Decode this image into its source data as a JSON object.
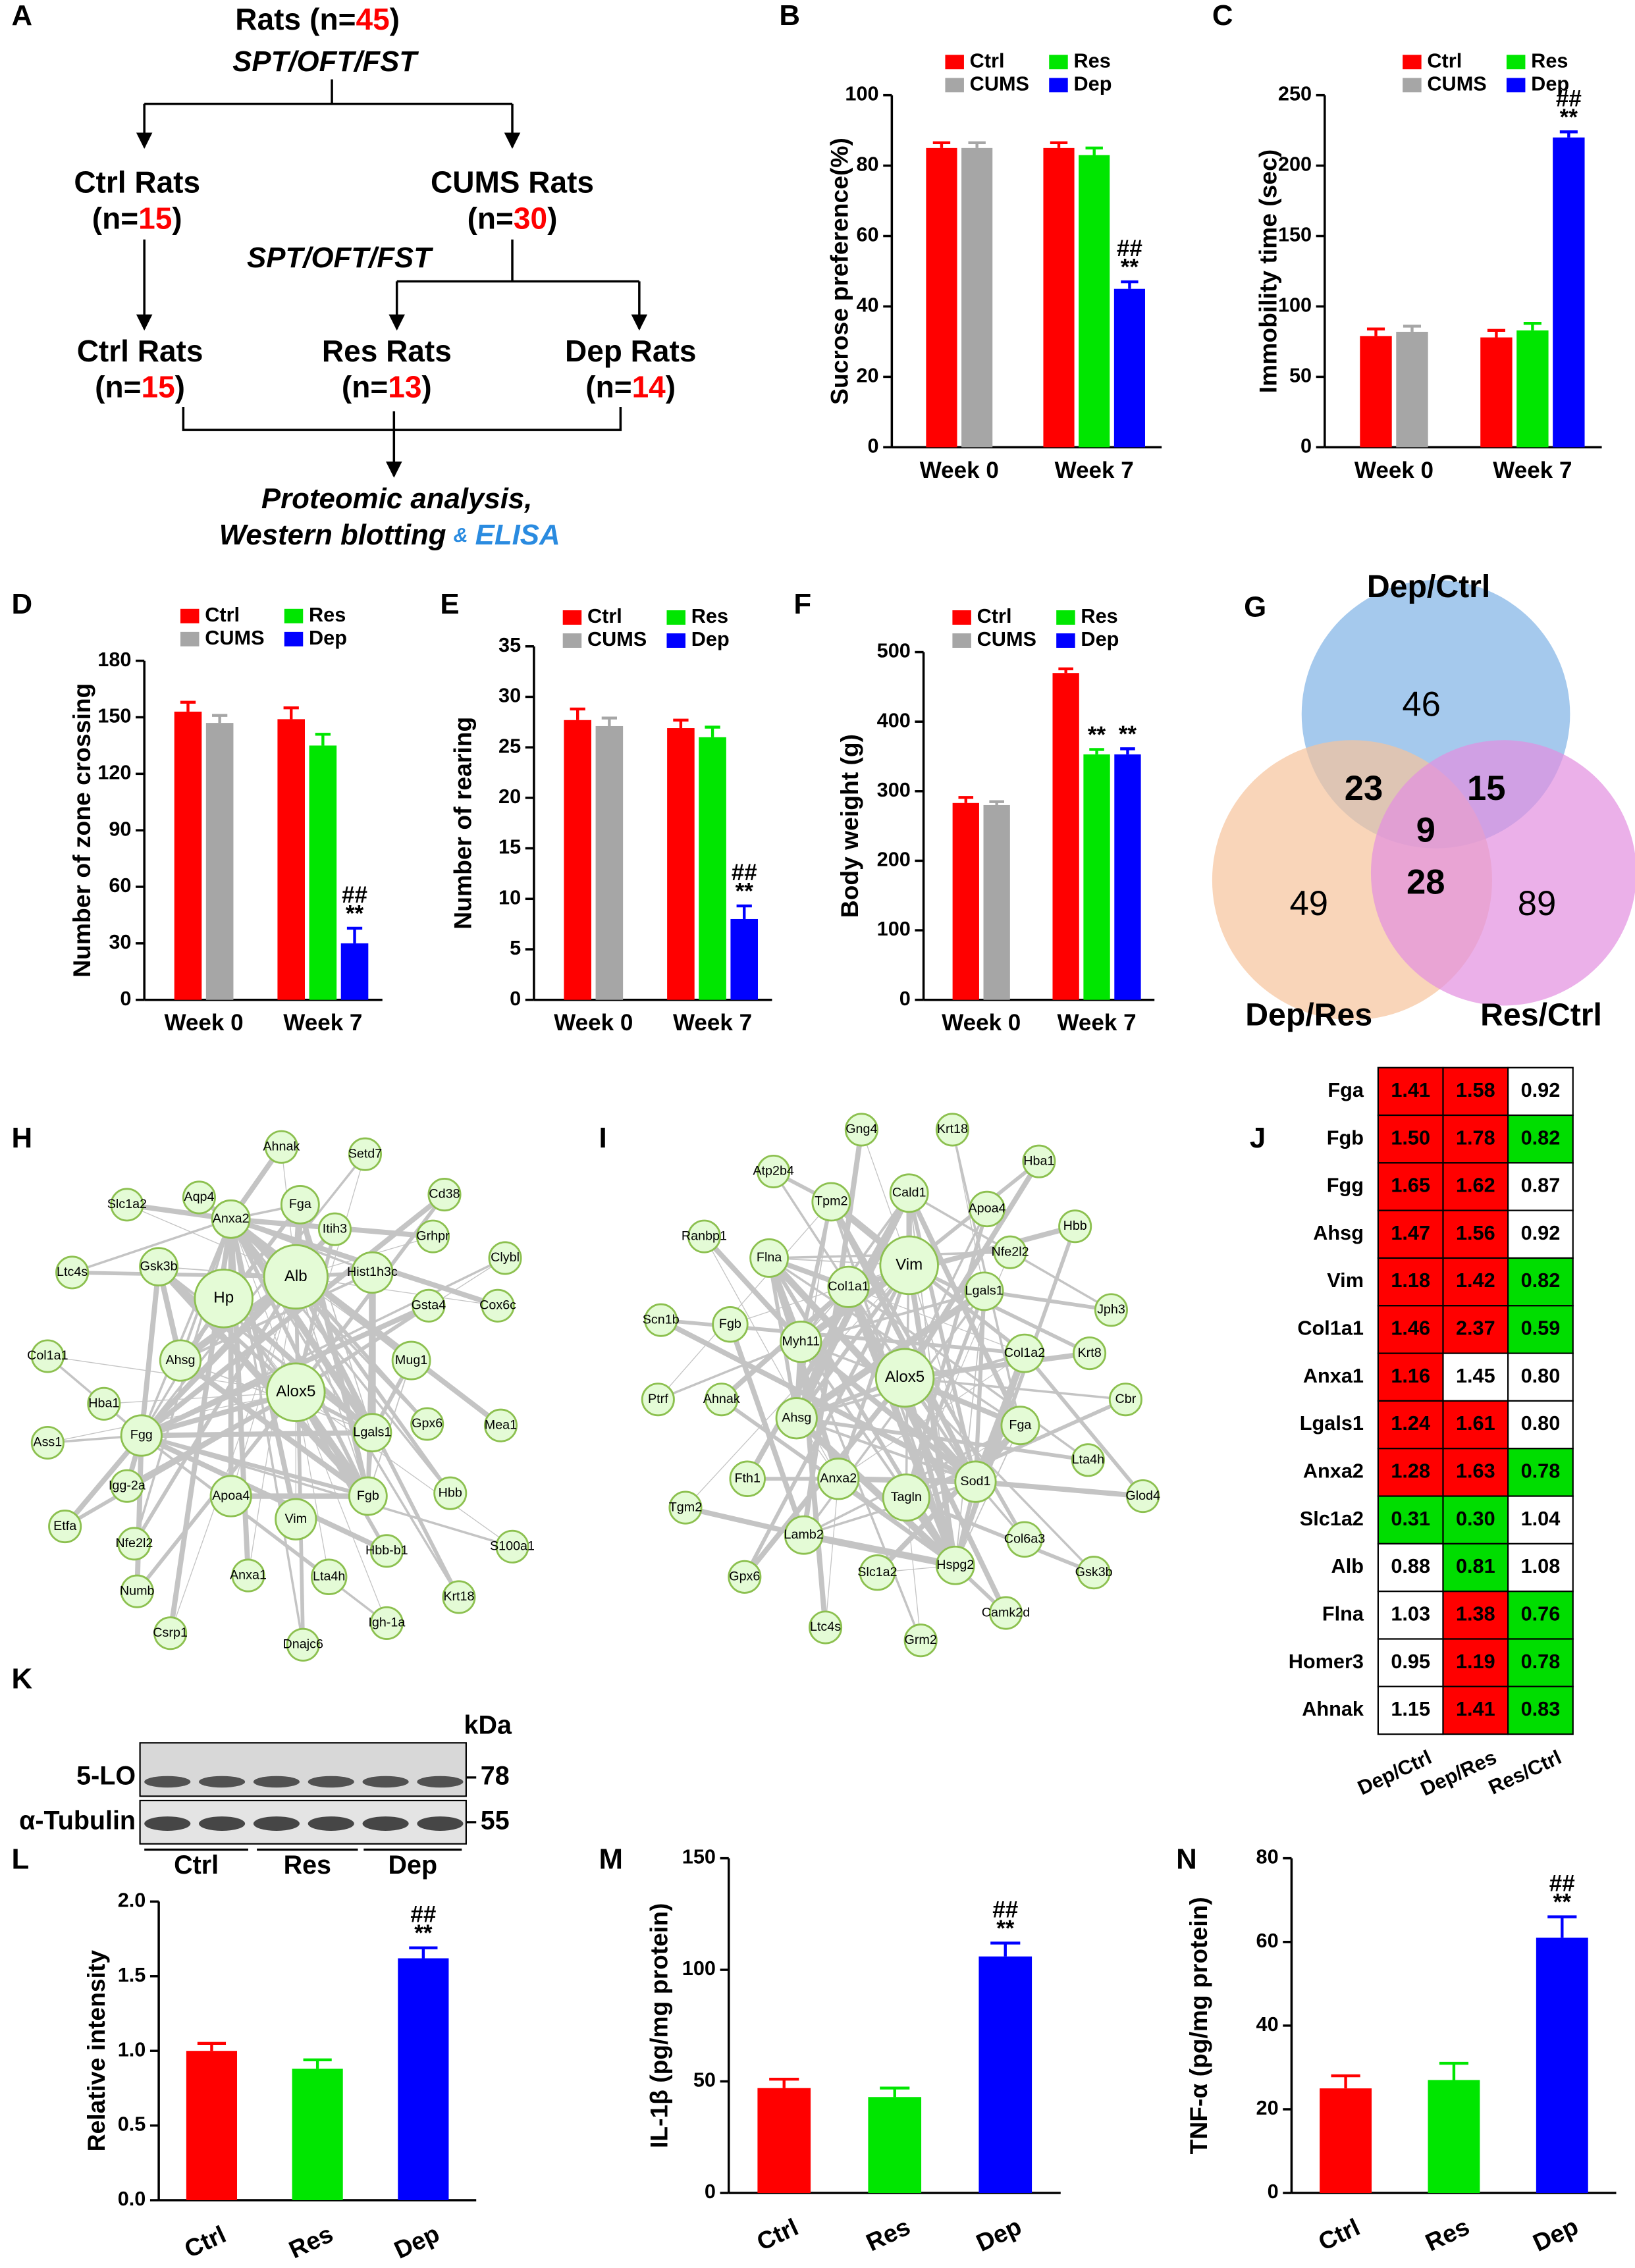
{
  "flowchart": {
    "panel": "A",
    "nodes": [
      {
        "name": "Rats",
        "n": [
          "(n=",
          45,
          ")"
        ]
      },
      {
        "name": "Ctrl Rats",
        "n": [
          "(n=",
          15,
          ")"
        ]
      },
      {
        "name": "CUMS Rats",
        "n": [
          "(n=",
          30,
          ")"
        ]
      },
      {
        "name": "Ctrl Rats",
        "n": [
          "(n=",
          15,
          ")"
        ]
      },
      {
        "name": "Res Rats",
        "n": [
          "(n=",
          13,
          ")"
        ]
      },
      {
        "name": "Dep Rats",
        "n": [
          "(n=",
          14,
          ")"
        ]
      }
    ],
    "tests": [
      "SPT/OFT/FST",
      "SPT/OFT/FST"
    ],
    "outcome": [
      "Proteomic analysis,",
      "Western blotting",
      "&",
      "ELISA"
    ]
  },
  "chart_data": [
    {
      "panel": "B",
      "type": "bar",
      "ylabel": "Sucrose preference(%)",
      "categories": [
        "Week 0",
        "Week 7"
      ],
      "ylim": [
        0,
        100
      ],
      "yticks": [
        0,
        20,
        40,
        60,
        80,
        100
      ],
      "series": [
        {
          "name": "Ctrl",
          "color": "#ff0000",
          "values": [
            85,
            85
          ],
          "errors": [
            1.5,
            1.5
          ]
        },
        {
          "name": "CUMS",
          "color": "#a6a6a6",
          "values": [
            85,
            null
          ],
          "errors": [
            1.5,
            null
          ]
        },
        {
          "name": "Res",
          "color": "#00e600",
          "values": [
            null,
            83
          ],
          "errors": [
            null,
            2
          ]
        },
        {
          "name": "Dep",
          "color": "#0000ff",
          "values": [
            null,
            45
          ],
          "errors": [
            null,
            2
          ],
          "annotations": [
            null,
            [
              "##",
              "**"
            ]
          ]
        }
      ]
    },
    {
      "panel": "C",
      "type": "bar",
      "ylabel": "Immobility time (sec)",
      "categories": [
        "Week 0",
        "Week 7"
      ],
      "ylim": [
        0,
        250
      ],
      "yticks": [
        0,
        50,
        100,
        150,
        200,
        250
      ],
      "series": [
        {
          "name": "Ctrl",
          "color": "#ff0000",
          "values": [
            79,
            78
          ],
          "errors": [
            5,
            5
          ]
        },
        {
          "name": "CUMS",
          "color": "#a6a6a6",
          "values": [
            82,
            null
          ],
          "errors": [
            4,
            null
          ]
        },
        {
          "name": "Res",
          "color": "#00e600",
          "values": [
            null,
            83
          ],
          "errors": [
            null,
            5
          ]
        },
        {
          "name": "Dep",
          "color": "#0000ff",
          "values": [
            null,
            220
          ],
          "errors": [
            null,
            4
          ],
          "annotations": [
            null,
            [
              "##",
              "**"
            ]
          ]
        }
      ]
    },
    {
      "panel": "D",
      "type": "bar",
      "ylabel": "Number of zone crossing",
      "categories": [
        "Week 0",
        "Week 7"
      ],
      "ylim": [
        0,
        180
      ],
      "yticks": [
        0,
        30,
        60,
        90,
        120,
        150,
        180
      ],
      "series": [
        {
          "name": "Ctrl",
          "color": "#ff0000",
          "values": [
            153,
            149
          ],
          "errors": [
            5,
            6
          ]
        },
        {
          "name": "CUMS",
          "color": "#a6a6a6",
          "values": [
            147,
            null
          ],
          "errors": [
            4,
            null
          ]
        },
        {
          "name": "Res",
          "color": "#00e600",
          "values": [
            null,
            135
          ],
          "errors": [
            null,
            6
          ]
        },
        {
          "name": "Dep",
          "color": "#0000ff",
          "values": [
            null,
            30
          ],
          "errors": [
            null,
            8
          ],
          "annotations": [
            null,
            [
              "##",
              "**"
            ]
          ]
        }
      ]
    },
    {
      "panel": "E",
      "type": "bar",
      "ylabel": "Number of rearing",
      "categories": [
        "Week 0",
        "Week 7"
      ],
      "ylim": [
        0,
        35
      ],
      "yticks": [
        0,
        5,
        10,
        15,
        20,
        25,
        30,
        35
      ],
      "series": [
        {
          "name": "Ctrl",
          "color": "#ff0000",
          "values": [
            27.7,
            26.9
          ],
          "errors": [
            1.1,
            0.8
          ]
        },
        {
          "name": "CUMS",
          "color": "#a6a6a6",
          "values": [
            27.1,
            null
          ],
          "errors": [
            0.8,
            null
          ]
        },
        {
          "name": "Res",
          "color": "#00e600",
          "values": [
            null,
            26
          ],
          "errors": [
            null,
            1
          ]
        },
        {
          "name": "Dep",
          "color": "#0000ff",
          "values": [
            null,
            8
          ],
          "errors": [
            null,
            1.3
          ],
          "annotations": [
            null,
            [
              "##",
              "**"
            ]
          ]
        }
      ]
    },
    {
      "panel": "F",
      "type": "bar",
      "ylabel": "Body weight (g)",
      "categories": [
        "Week 0",
        "Week 7"
      ],
      "ylim": [
        0,
        500
      ],
      "yticks": [
        0,
        100,
        200,
        300,
        400,
        500
      ],
      "series": [
        {
          "name": "Ctrl",
          "color": "#ff0000",
          "values": [
            283,
            470
          ],
          "errors": [
            8,
            6
          ]
        },
        {
          "name": "CUMS",
          "color": "#a6a6a6",
          "values": [
            280,
            null
          ],
          "errors": [
            5,
            null
          ]
        },
        {
          "name": "Res",
          "color": "#00e600",
          "values": [
            null,
            353
          ],
          "errors": [
            null,
            7
          ],
          "annotations": [
            null,
            [
              "**"
            ]
          ]
        },
        {
          "name": "Dep",
          "color": "#0000ff",
          "values": [
            null,
            353
          ],
          "errors": [
            null,
            8
          ],
          "annotations": [
            null,
            [
              "**"
            ]
          ]
        }
      ]
    },
    {
      "panel": "L",
      "type": "bar",
      "ylabel": "Relative intensity",
      "categories": [
        "Ctrl",
        "Res",
        "Dep"
      ],
      "colors": [
        "#ff0000",
        "#00e600",
        "#0000ff"
      ],
      "values": [
        1.0,
        0.88,
        1.62
      ],
      "errors": [
        0.05,
        0.06,
        0.07
      ],
      "annotations": [
        null,
        null,
        [
          "##",
          "**"
        ]
      ],
      "ylim": [
        0,
        2
      ],
      "yticks": [
        {
          "value": 0,
          "label": "0.0"
        },
        0.5,
        {
          "value": 1,
          "label": "1.0"
        },
        1.5,
        {
          "value": 2,
          "label": "2.0"
        }
      ]
    },
    {
      "panel": "M",
      "type": "bar",
      "ylabel": "IL-1β (pg/mg protein)",
      "categories": [
        "Ctrl",
        "Res",
        "Dep"
      ],
      "colors": [
        "#ff0000",
        "#00e600",
        "#0000ff"
      ],
      "values": [
        47,
        43,
        106
      ],
      "errors": [
        4,
        4,
        6
      ],
      "annotations": [
        null,
        null,
        [
          "##",
          "**"
        ]
      ],
      "ylim": [
        0,
        150
      ],
      "yticks": [
        0,
        50,
        100,
        150
      ]
    },
    {
      "panel": "N",
      "type": "bar",
      "ylabel": "TNF-α (pg/mg protein)",
      "categories": [
        "Ctrl",
        "Res",
        "Dep"
      ],
      "colors": [
        "#ff0000",
        "#00e600",
        "#0000ff"
      ],
      "values": [
        25,
        27,
        61
      ],
      "errors": [
        3,
        4,
        5
      ],
      "annotations": [
        null,
        null,
        [
          "##",
          "**"
        ]
      ],
      "ylim": [
        0,
        80
      ],
      "yticks": [
        0,
        20,
        40,
        60,
        80
      ]
    }
  ],
  "venn": {
    "panel": "G",
    "sets": [
      {
        "name": "Dep/Ctrl",
        "color": "#7fb2e5"
      },
      {
        "name": "Dep/Res",
        "color": "#f7c39b"
      },
      {
        "name": "Res/Ctrl",
        "color": "#e28fe0"
      }
    ],
    "regions": [
      {
        "sets": [
          "Dep/Ctrl"
        ],
        "value": 46
      },
      {
        "sets": [
          "Dep/Ctrl",
          "Dep/Res"
        ],
        "value": 23
      },
      {
        "sets": [
          "Dep/Ctrl",
          "Res/Ctrl"
        ],
        "value": 15
      },
      {
        "sets": [
          "Dep/Ctrl",
          "Dep/Res",
          "Res/Ctrl"
        ],
        "value": 9
      },
      {
        "sets": [
          "Dep/Res"
        ],
        "value": 49
      },
      {
        "sets": [
          "Dep/Res",
          "Res/Ctrl"
        ],
        "value": 28
      },
      {
        "sets": [
          "Res/Ctrl"
        ],
        "value": 89
      }
    ]
  },
  "networks": [
    {
      "panel": "H",
      "nodes": [
        "Ahnak",
        "Setd7",
        "Aqp4",
        "Cd38",
        "Slc1a2",
        "Anxa2",
        "Fga",
        "Itih3",
        "Grhpr",
        "Clybl",
        "Ltc4s",
        "Gsk3b",
        "Alb",
        "Hp",
        "Hist1h3c",
        "Gsta4",
        "Cox6c",
        "Col1a1",
        "Ahsg",
        "Alox5",
        "Mug1",
        "Hba1",
        "Gpx6",
        "Lgals1",
        "Mea1",
        "Ass1",
        "Fgg",
        "Igg-2a",
        "Apoa4",
        "Fgb",
        "Hbb",
        "Etfa",
        "Vim",
        "S100a1",
        "Nfe2l2",
        "Hbb-b1",
        "Anxa1",
        "Lta4h",
        "Krt18",
        "Numb",
        "Csrp1",
        "Igh-1a",
        "Dnajc6"
      ]
    },
    {
      "panel": "I",
      "nodes": [
        "Gng4",
        "Krt18",
        "Atp2b4",
        "Hba1",
        "Cald1",
        "Tpm2",
        "Apoa4",
        "Hbb",
        "Ranbp1",
        "Nfe2l2",
        "Flna",
        "Vim",
        "Col1a1",
        "Lgals1",
        "Jph3",
        "Scn1b",
        "Fgb",
        "Myh11",
        "Col1a2",
        "Krt8",
        "Alox5",
        "Ptrf",
        "Cbr",
        "Ahnak",
        "Ahsg",
        "Fga",
        "Lta4h",
        "Fth1",
        "Anxa2",
        "Sod1",
        "Tagln",
        "Glod4",
        "Tgm2",
        "Lamb2",
        "Col6a3",
        "Gpx6",
        "Slc1a2",
        "Hspg2",
        "Gsk3b",
        "Camk2d",
        "Ltc4s",
        "Grm2"
      ]
    }
  ],
  "heatmap": {
    "panel": "J",
    "rows": [
      "Fga",
      "Fgb",
      "Fgg",
      "Ahsg",
      "Vim",
      "Col1a1",
      "Anxa1",
      "Lgals1",
      "Anxa2",
      "Slc1a2",
      "Alb",
      "Flna",
      "Homer3",
      "Ahnak"
    ],
    "columns": [
      "Dep/Ctrl",
      "Dep/Res",
      "Res/Ctrl"
    ],
    "values": [
      [
        1.41,
        1.58,
        0.92
      ],
      [
        1.5,
        1.78,
        0.82
      ],
      [
        1.65,
        1.62,
        0.87
      ],
      [
        1.47,
        1.56,
        0.92
      ],
      [
        1.18,
        1.42,
        0.82
      ],
      [
        1.46,
        2.37,
        0.59
      ],
      [
        1.16,
        1.45,
        0.8
      ],
      [
        1.24,
        1.61,
        0.8
      ],
      [
        1.28,
        1.63,
        0.78
      ],
      [
        0.31,
        0.3,
        1.04
      ],
      [
        0.88,
        0.81,
        1.08
      ],
      [
        1.03,
        1.38,
        0.76
      ],
      [
        0.95,
        1.19,
        0.78
      ],
      [
        1.15,
        1.41,
        0.83
      ]
    ],
    "value_labels": [
      [
        "1.41",
        "1.58",
        "0.92"
      ],
      [
        "1.50",
        "1.78",
        "0.82"
      ],
      [
        "1.65",
        "1.62",
        "0.87"
      ],
      [
        "1.47",
        "1.56",
        "0.92"
      ],
      [
        "1.18",
        "1.42",
        "0.82"
      ],
      [
        "1.46",
        "2.37",
        "0.59"
      ],
      [
        "1.16",
        "1.45",
        "0.80"
      ],
      [
        "1.24",
        "1.61",
        "0.80"
      ],
      [
        "1.28",
        "1.63",
        "0.78"
      ],
      [
        "0.31",
        "0.30",
        "1.04"
      ],
      [
        "0.88",
        "0.81",
        "1.08"
      ],
      [
        "1.03",
        "1.38",
        "0.76"
      ],
      [
        "0.95",
        "1.19",
        "0.78"
      ],
      [
        "1.15",
        "1.41",
        "0.83"
      ]
    ],
    "colors": [
      [
        "#ff0000",
        "#ff0000",
        "#ffffff"
      ],
      [
        "#ff0000",
        "#ff0000",
        "#00dd00"
      ],
      [
        "#ff0000",
        "#ff0000",
        "#ffffff"
      ],
      [
        "#ff0000",
        "#ff0000",
        "#ffffff"
      ],
      [
        "#ff0000",
        "#ff0000",
        "#00dd00"
      ],
      [
        "#ff0000",
        "#ff0000",
        "#00dd00"
      ],
      [
        "#ff0000",
        "#ffffff",
        "#ffffff"
      ],
      [
        "#ff0000",
        "#ff0000",
        "#ffffff"
      ],
      [
        "#ff0000",
        "#ff0000",
        "#00dd00"
      ],
      [
        "#00dd00",
        "#00dd00",
        "#ffffff"
      ],
      [
        "#ffffff",
        "#00dd00",
        "#ffffff"
      ],
      [
        "#ffffff",
        "#ff0000",
        "#00dd00"
      ],
      [
        "#ffffff",
        "#ff0000",
        "#00dd00"
      ],
      [
        "#ffffff",
        "#ff0000",
        "#00dd00"
      ]
    ]
  },
  "blot": {
    "panel": "K",
    "unit": "kDa",
    "rows": [
      {
        "name": "5-LO",
        "kda": 78
      },
      {
        "name": "α-Tubulin",
        "kda": 55
      }
    ],
    "groups": [
      "Ctrl",
      "Res",
      "Dep"
    ]
  }
}
